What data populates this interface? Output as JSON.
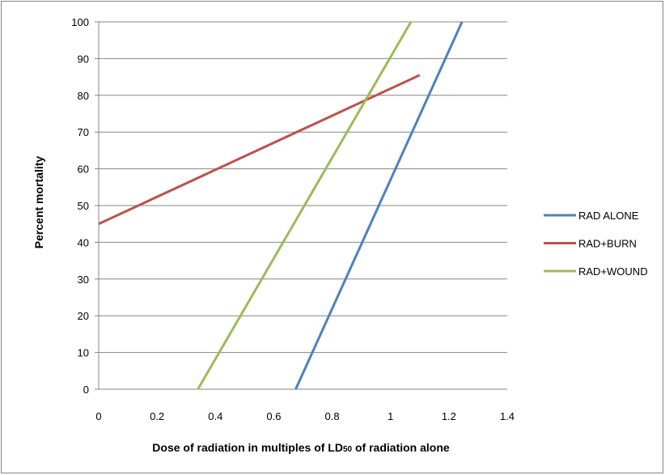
{
  "chart_data": {
    "type": "line",
    "title": "",
    "xlabel": "Dose of radiation in multiples of LD",
    "xlabel_sub": "50",
    "xlabel_tail": " of radiation alone",
    "ylabel": "Percent mortality",
    "xlim": [
      0,
      1.4
    ],
    "ylim": [
      0,
      100
    ],
    "x_ticks": [
      "0",
      "0.2",
      "0.4",
      "0.6",
      "0.8",
      "1",
      "1.2",
      "1.4"
    ],
    "y_ticks": [
      "0",
      "10",
      "20",
      "30",
      "40",
      "50",
      "60",
      "70",
      "80",
      "90",
      "100"
    ],
    "grid": "horizontal",
    "legend_position": "right",
    "series": [
      {
        "name": "RAD ALONE",
        "color": "#4f81bd",
        "points": [
          [
            0.675,
            0
          ],
          [
            1.245,
            100
          ]
        ]
      },
      {
        "name": "RAD+BURN",
        "color": "#c0504d",
        "points": [
          [
            0,
            45
          ],
          [
            1.1,
            85.5
          ]
        ]
      },
      {
        "name": "RAD+WOUND",
        "color": "#9bbb59",
        "points": [
          [
            0.34,
            0
          ],
          [
            1.07,
            100
          ]
        ]
      }
    ]
  }
}
